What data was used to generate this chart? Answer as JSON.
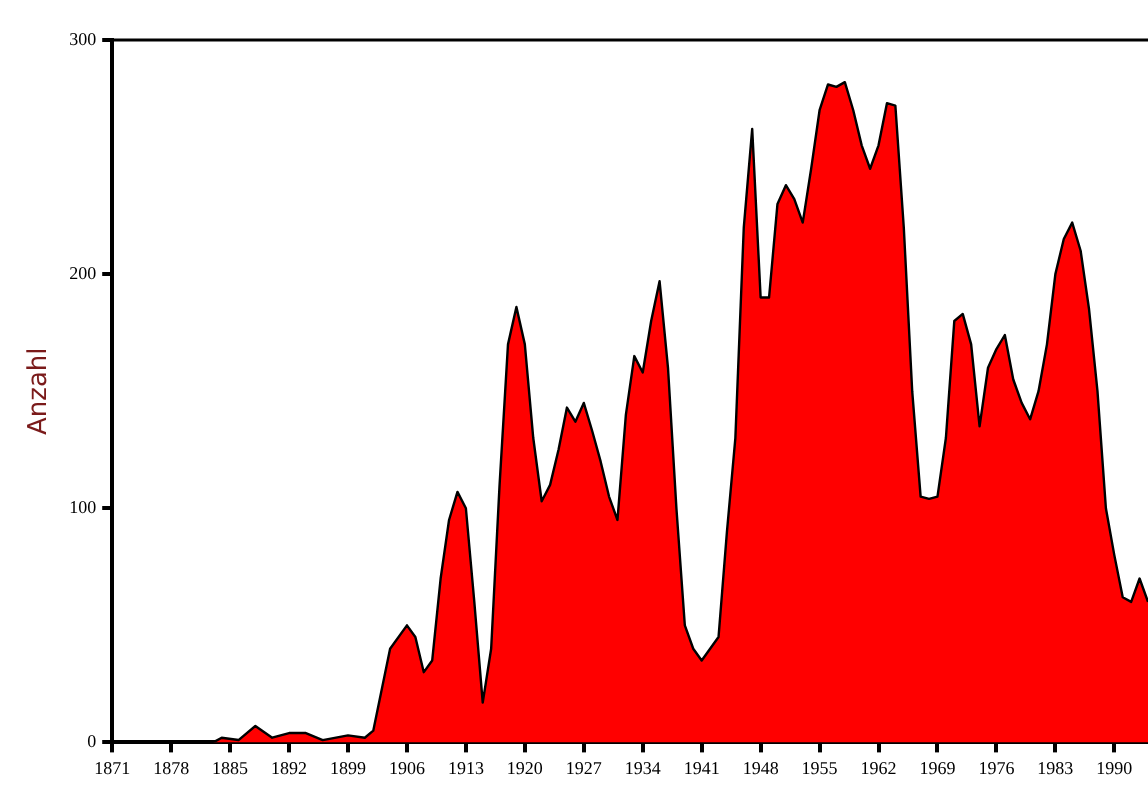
{
  "chart_data": {
    "type": "area",
    "ylabel": "Anzahl",
    "x": [
      1871,
      1883,
      1884,
      1886,
      1888,
      1890,
      1892,
      1894,
      1896,
      1899,
      1901,
      1902,
      1904,
      1906,
      1907,
      1908,
      1909,
      1910,
      1911,
      1912,
      1913,
      1914,
      1915,
      1916,
      1917,
      1918,
      1919,
      1920,
      1921,
      1922,
      1923,
      1924,
      1925,
      1926,
      1927,
      1928,
      1929,
      1930,
      1931,
      1932,
      1933,
      1934,
      1935,
      1936,
      1937,
      1938,
      1939,
      1940,
      1941,
      1942,
      1943,
      1944,
      1945,
      1946,
      1947,
      1948,
      1949,
      1950,
      1951,
      1952,
      1953,
      1954,
      1955,
      1956,
      1957,
      1958,
      1959,
      1960,
      1961,
      1962,
      1963,
      1964,
      1965,
      1966,
      1967,
      1968,
      1969,
      1970,
      1971,
      1972,
      1973,
      1974,
      1975,
      1976,
      1977,
      1978,
      1979,
      1980,
      1981,
      1982,
      1983,
      1984,
      1985,
      1986,
      1987,
      1988,
      1989,
      1990,
      1991,
      1992,
      1993,
      1994
    ],
    "series": [
      {
        "color": "#ff0000",
        "values": [
          0,
          0,
          2,
          1,
          7,
          2,
          4,
          4,
          1,
          3,
          2,
          5,
          40,
          50,
          45,
          30,
          35,
          70,
          95,
          107,
          100,
          60,
          17,
          40,
          110,
          170,
          186,
          170,
          130,
          103,
          110,
          125,
          143,
          137,
          145,
          133,
          120,
          105,
          95,
          140,
          165,
          158,
          180,
          197,
          160,
          100,
          50,
          40,
          35,
          40,
          45,
          90,
          130,
          220,
          262,
          190,
          190,
          230,
          238,
          232,
          222,
          245,
          270,
          281,
          280,
          282,
          270,
          255,
          245,
          255,
          273,
          272,
          220,
          150,
          105,
          104,
          105,
          130,
          180,
          183,
          170,
          135,
          160,
          168,
          174,
          155,
          145,
          138,
          150,
          170,
          200,
          215,
          222,
          210,
          185,
          150,
          100,
          80,
          62,
          60,
          70,
          60
        ]
      }
    ],
    "xlim": [
      1871,
      1994
    ],
    "xticks": [
      1871,
      1878,
      1885,
      1892,
      1899,
      1906,
      1913,
      1920,
      1927,
      1934,
      1941,
      1948,
      1955,
      1962,
      1969,
      1976,
      1983,
      1990
    ],
    "ylim": [
      0,
      300
    ],
    "yticks": [
      0,
      100,
      200,
      300
    ],
    "grid": false,
    "legend": false,
    "marker": "none",
    "line_style": "solid"
  }
}
